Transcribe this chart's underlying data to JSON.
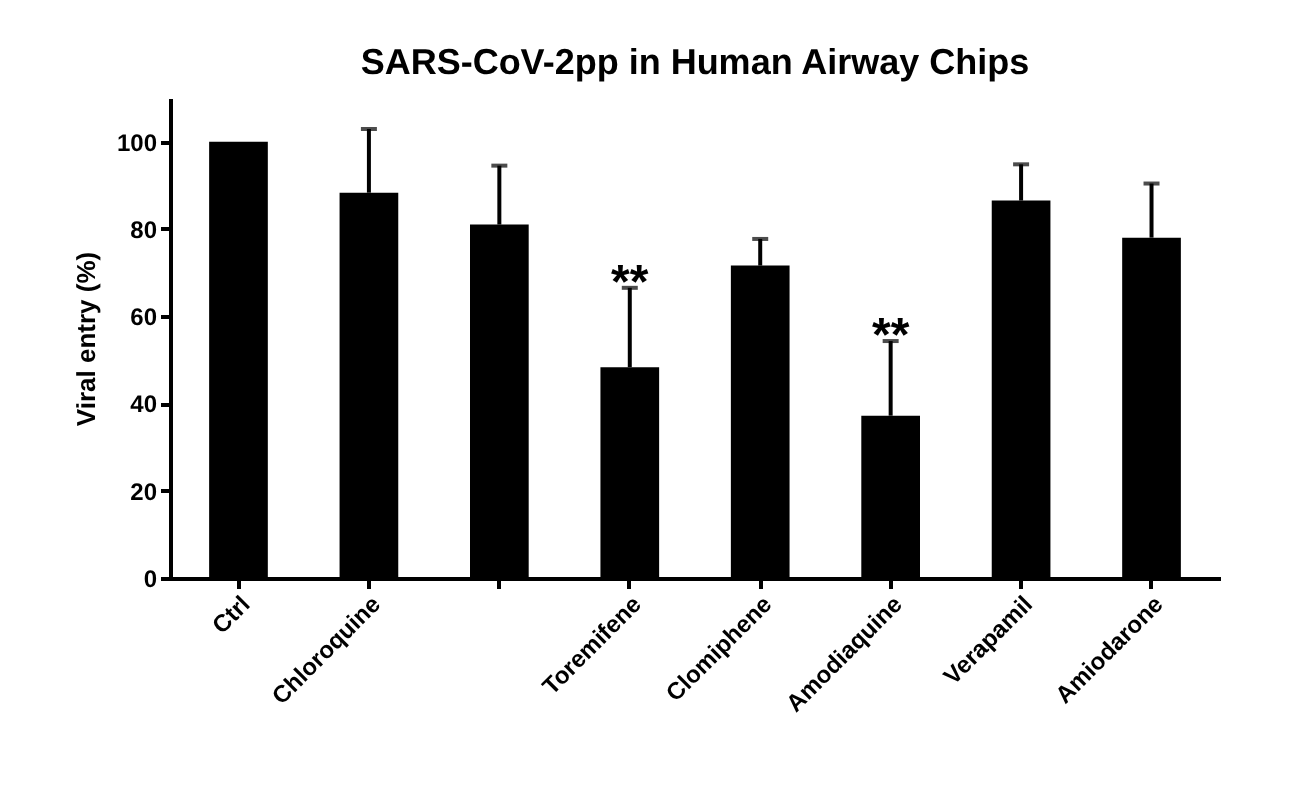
{
  "chart_data": {
    "type": "bar",
    "title": "SARS-CoV-2pp in Human Airway Chips",
    "ylabel": "Viral entry (%)",
    "categories": [
      "Ctrl",
      "Chloroquine",
      null,
      "Toremifene",
      "Clomiphene",
      "Amodiaquine",
      "Verapamil",
      "Amiodarone"
    ],
    "values": [
      100,
      88.3,
      81,
      48.3,
      71.6,
      37.2,
      86.5,
      78
    ],
    "errors": [
      null,
      [
        88.3,
        102.9
      ],
      [
        81,
        94.5
      ],
      [
        48.3,
        66.5
      ],
      [
        71.6,
        77.7
      ],
      [
        37.2,
        54.3
      ],
      [
        86.5,
        94.8
      ],
      [
        78,
        90.4
      ]
    ],
    "color": "#000000",
    "ylim": [
      0,
      110
    ],
    "yticks": [
      0,
      20,
      40,
      60,
      80,
      100
    ],
    "grid": false,
    "annotations": [
      {
        "text": "**",
        "x": "Toremifene",
        "y": 66.5
      },
      {
        "text": "**",
        "x": "Amodiaquine",
        "y": 54.3
      }
    ]
  }
}
